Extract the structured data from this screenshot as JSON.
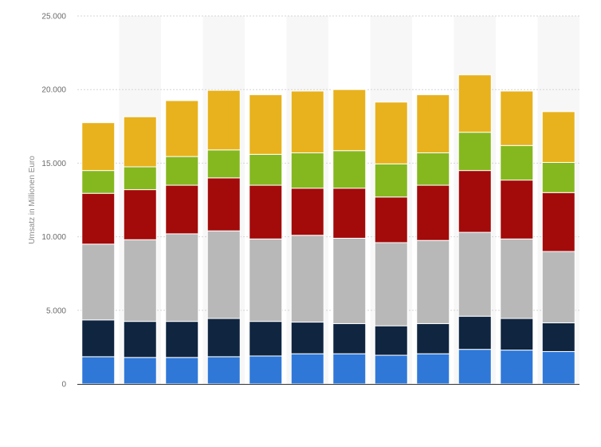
{
  "chart_data": {
    "type": "bar",
    "stacked": true,
    "title": "",
    "xlabel": "",
    "ylabel": "Umsatz in Millionen Euro",
    "ylim": [
      0,
      25000
    ],
    "yticks": [
      0,
      5000,
      10000,
      15000,
      20000,
      25000
    ],
    "ytick_labels": [
      "0",
      "5.000",
      "10.000",
      "15.000",
      "20.000",
      "25.000"
    ],
    "grid": true,
    "legend": "none",
    "categories": [
      "",
      "",
      "",
      "",
      "",
      "",
      "",
      "",
      "",
      "",
      "",
      ""
    ],
    "series": [
      {
        "color": "#2f78d8",
        "values": [
          1850,
          1800,
          1800,
          1850,
          1900,
          2050,
          2050,
          1950,
          2050,
          2350,
          2300,
          2200
        ]
      },
      {
        "color": "#0f2540",
        "values": [
          2500,
          2450,
          2450,
          2600,
          2350,
          2150,
          2050,
          2000,
          2050,
          2250,
          2150,
          1950
        ]
      },
      {
        "color": "#b8b8b8",
        "values": [
          5150,
          5550,
          5950,
          5950,
          5600,
          5900,
          5800,
          5650,
          5650,
          5700,
          5400,
          4850
        ]
      },
      {
        "color": "#a30a0a",
        "values": [
          3450,
          3400,
          3300,
          3600,
          3650,
          3200,
          3400,
          3100,
          3750,
          4200,
          4000,
          4000
        ]
      },
      {
        "color": "#85b81f",
        "values": [
          1550,
          1550,
          1950,
          1900,
          2100,
          2400,
          2550,
          2250,
          2200,
          2600,
          2350,
          2050
        ]
      },
      {
        "color": "#e8b21e",
        "values": [
          3250,
          3400,
          3800,
          4050,
          4050,
          4200,
          4150,
          4200,
          3950,
          3900,
          3700,
          3450
        ]
      }
    ]
  }
}
